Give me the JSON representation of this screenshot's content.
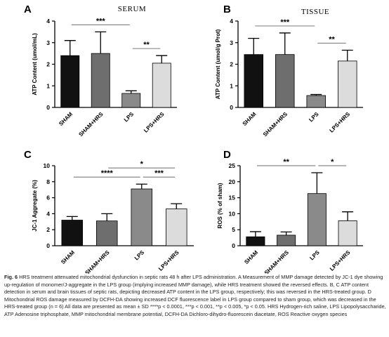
{
  "chart_data": [
    {
      "letter": "A",
      "title": "SERUM",
      "type": "bar",
      "ylabel": "ATP Content (umol/mL)",
      "ylim": [
        0,
        4
      ],
      "yticks": [
        "0",
        "1",
        "2",
        "3",
        "4"
      ],
      "categories": [
        "SHAM",
        "SHAM+HRS",
        "LPS",
        "LPS+HRS"
      ],
      "values": [
        2.4,
        2.5,
        0.65,
        2.05
      ],
      "errors": [
        0.7,
        1.0,
        0.12,
        0.35
      ],
      "colors": [
        "#111111",
        "#6e6e6e",
        "#8a8a8a",
        "#dcdcdc"
      ],
      "significance": [
        {
          "from": 0,
          "to": 2,
          "label": "***"
        },
        {
          "from": 2,
          "to": 3,
          "label": "**"
        }
      ]
    },
    {
      "letter": "B",
      "title": "TISSUE",
      "type": "bar",
      "ylabel": "ATP Content (umol/g Prot)",
      "ylim": [
        0,
        4
      ],
      "yticks": [
        "0",
        "1",
        "2",
        "3",
        "4"
      ],
      "categories": [
        "SHAM",
        "SHAM+HRS",
        "LPS",
        "LPS+HRS"
      ],
      "values": [
        2.45,
        2.45,
        0.55,
        2.15
      ],
      "errors": [
        0.75,
        1.0,
        0.05,
        0.5
      ],
      "colors": [
        "#111111",
        "#6e6e6e",
        "#8a8a8a",
        "#dcdcdc"
      ],
      "significance": [
        {
          "from": 0,
          "to": 2,
          "label": "***"
        },
        {
          "from": 2,
          "to": 3,
          "label": "**"
        }
      ]
    },
    {
      "letter": "C",
      "title": "",
      "type": "bar",
      "ylabel": "JC-1 Aggregate (%)",
      "ylim": [
        0,
        10
      ],
      "yticks": [
        "0",
        "2",
        "4",
        "6",
        "8",
        "10"
      ],
      "categories": [
        "SHAM",
        "SHAM+HRS",
        "LPS",
        "LPS+HRS"
      ],
      "values": [
        3.2,
        3.1,
        7.1,
        4.6
      ],
      "errors": [
        0.45,
        0.9,
        0.6,
        0.65
      ],
      "colors": [
        "#111111",
        "#6e6e6e",
        "#8a8a8a",
        "#dcdcdc"
      ],
      "significance": [
        {
          "from": 0,
          "to": 2,
          "label": "****"
        },
        {
          "from": 1,
          "to": 3,
          "label": "*"
        },
        {
          "from": 2,
          "to": 3,
          "label": "***"
        }
      ]
    },
    {
      "letter": "D",
      "title": "",
      "type": "bar",
      "ylabel": "ROS (% of sham)",
      "ylim": [
        0,
        25
      ],
      "yticks": [
        "0",
        "5",
        "10",
        "15",
        "20",
        "25"
      ],
      "categories": [
        "SHAM",
        "SHAM+HRS",
        "LPS",
        "LPS+HRS"
      ],
      "values": [
        2.8,
        3.3,
        16.3,
        7.8
      ],
      "errors": [
        1.6,
        1.0,
        6.5,
        2.8
      ],
      "colors": [
        "#111111",
        "#6e6e6e",
        "#8a8a8a",
        "#dcdcdc"
      ],
      "significance": [
        {
          "from": 0,
          "to": 2,
          "label": "**"
        },
        {
          "from": 2,
          "to": 3,
          "label": "*"
        }
      ]
    }
  ],
  "caption": {
    "label": "Fig. 6",
    "text": "HRS treatment attenuated mitochondrial dysfunction in septic rats 48 h after LPS administration. A Measurement of MMP damage detected by JC-1 dye showing up-regulation of monomer/J-aggregate in the LPS group (implying increased MMP damage), while HRS treatment showed the reversed effects. B, C ATP content detection in serum and brain tissues of septic rats, depicting decreased ATP content in the LPS group, respectively; this was reversed in the HRS-treated group. D Mitochondrial ROS damage measured by DCFH-DA showing increased DCF fluorescence label in LPS group compared to sham group, which was decreased in the HRS-treated group (n = 6) All data are presented as mean ± SD ****p < 0.0001, ***p < 0.001, **p < 0.005, *p < 0.05. HRS Hydrogen-rich saline, LPS Lipopolysaccharide, ATP Adenosine triphosphate, MMP mitochondrial membrane potential, DCFH-DA Dichloro-dihydro-fluorescein diacetate, ROS Reactive oxygen species"
  }
}
